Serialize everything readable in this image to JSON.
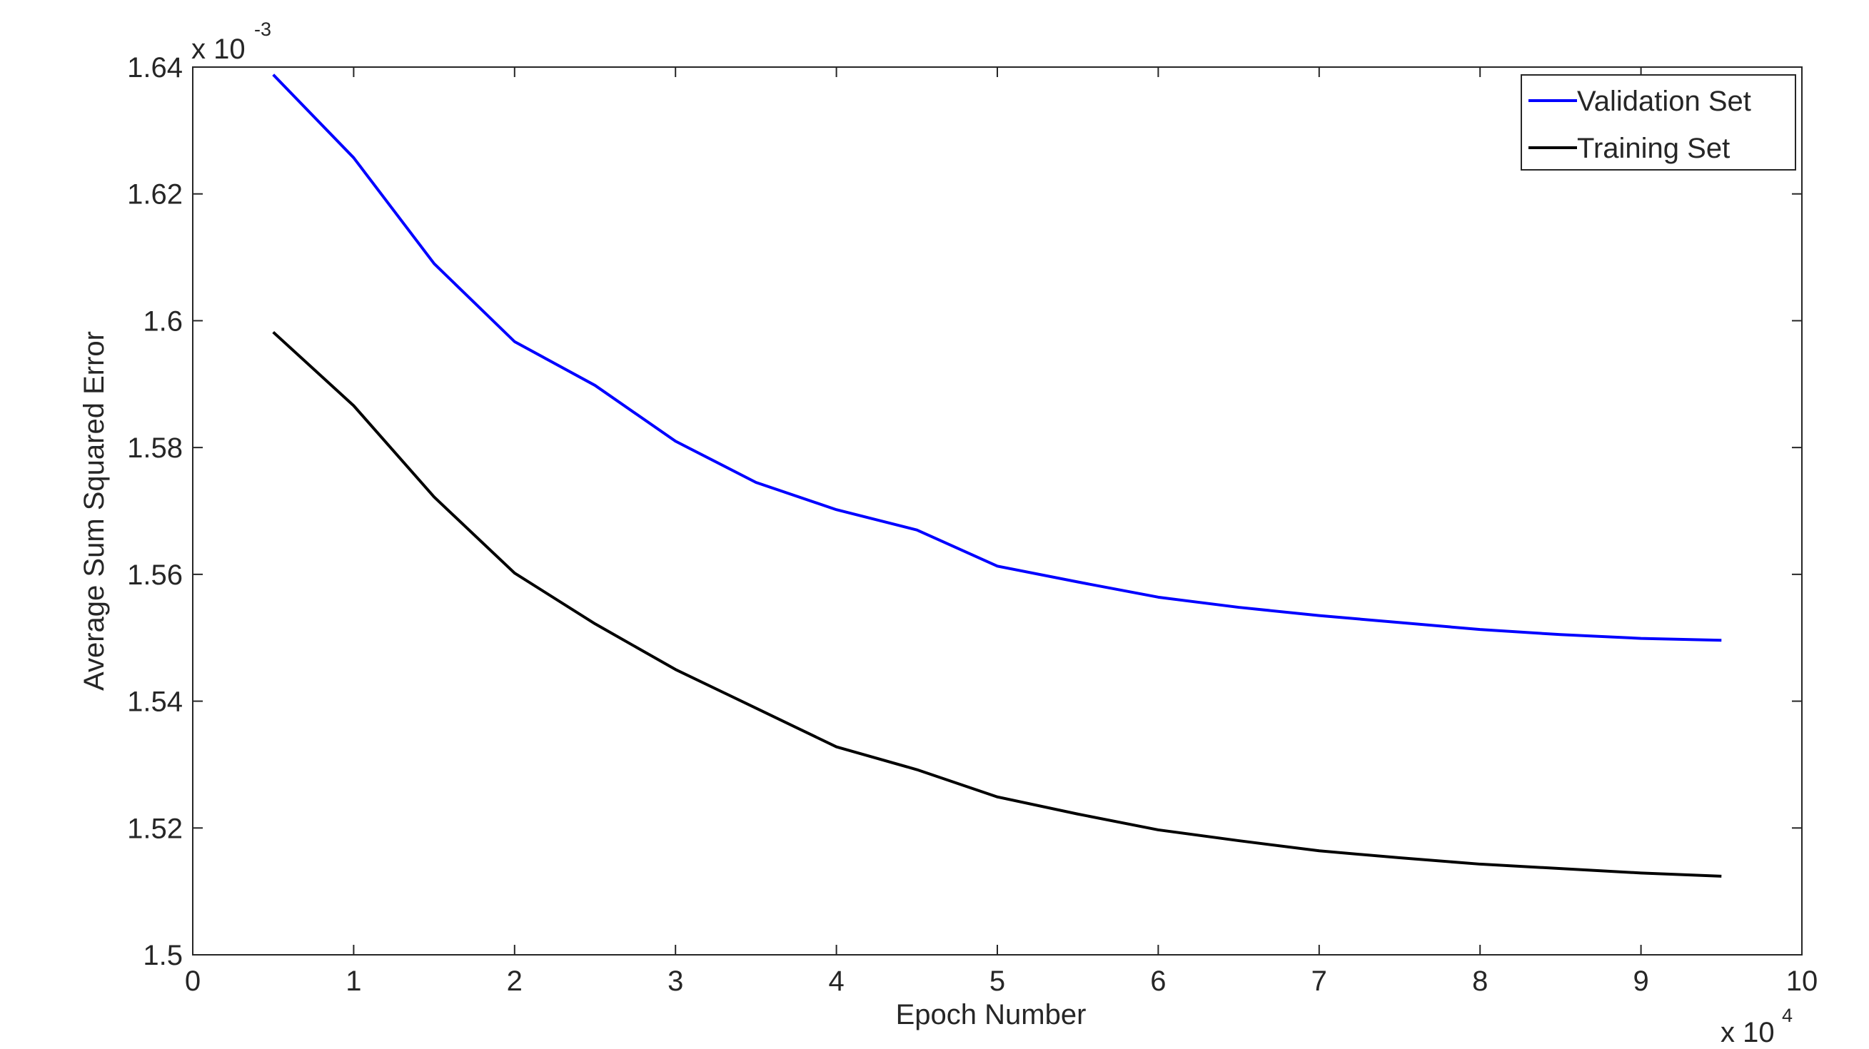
{
  "chart_data": {
    "type": "line",
    "xlabel": "Epoch Number",
    "ylabel": "Average Sum Squared Error",
    "x_multiplier": {
      "base": "x 10",
      "exponent": "4"
    },
    "y_multiplier": {
      "base": "x 10",
      "exponent": "-3"
    },
    "x": [
      0.5,
      1,
      1.5,
      2,
      2.5,
      3,
      3.5,
      4,
      4.5,
      5,
      5.5,
      6,
      6.5,
      7,
      7.5,
      8,
      8.5,
      9,
      9.5
    ],
    "series": [
      {
        "name": "Validation Set",
        "color": "#0000ff",
        "values": [
          1.6388,
          1.6257,
          1.609,
          1.5967,
          1.5898,
          1.581,
          1.5745,
          1.5702,
          1.567,
          1.5613,
          1.5588,
          1.5564,
          1.5548,
          1.5535,
          1.5524,
          1.5513,
          1.5505,
          1.5499,
          1.5496
        ]
      },
      {
        "name": "Training Set",
        "color": "#000000",
        "values": [
          1.5982,
          1.5866,
          1.5722,
          1.5602,
          1.5522,
          1.545,
          1.5389,
          1.5328,
          1.5292,
          1.5249,
          1.5222,
          1.5197,
          1.518,
          1.5164,
          1.5153,
          1.5143,
          1.5136,
          1.5129,
          1.5124
        ]
      }
    ],
    "xlim": [
      0,
      10
    ],
    "xticks": [
      0,
      1,
      2,
      3,
      4,
      5,
      6,
      7,
      8,
      9,
      10
    ],
    "ylim": [
      1.5,
      1.64
    ],
    "yticks": [
      1.5,
      1.52,
      1.54,
      1.56,
      1.58,
      1.6,
      1.62,
      1.64
    ],
    "grid": false,
    "legend": "upper right"
  }
}
